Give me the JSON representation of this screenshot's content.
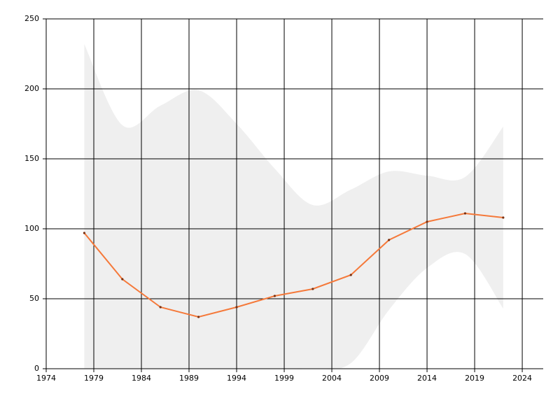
{
  "chart_data": {
    "type": "line",
    "x": [
      1978,
      1982,
      1986,
      1990,
      1994,
      1998,
      2002,
      2006,
      2010,
      2014,
      2018,
      2022
    ],
    "series": [
      {
        "color": "#f5793a",
        "values": [
          97,
          64,
          44,
          37,
          44,
          52,
          57,
          67,
          92,
          105,
          111,
          108
        ]
      }
    ],
    "band": {
      "color": "#efefef",
      "upper": [
        232,
        174,
        188,
        199,
        175,
        143,
        117,
        128,
        141,
        138,
        137,
        173
      ],
      "lower": [
        0,
        0,
        0,
        0,
        0,
        0,
        0,
        4,
        42,
        72,
        82,
        43
      ]
    },
    "marker_color": "#7a3010",
    "xlim": [
      1974,
      2026.2
    ],
    "ylim": [
      0,
      250
    ],
    "xticks": [
      1974,
      1979,
      1984,
      1989,
      1994,
      1999,
      2004,
      2009,
      2014,
      2019,
      2024
    ],
    "yticks": [
      0,
      50,
      100,
      150,
      200,
      250
    ],
    "grid": true
  }
}
